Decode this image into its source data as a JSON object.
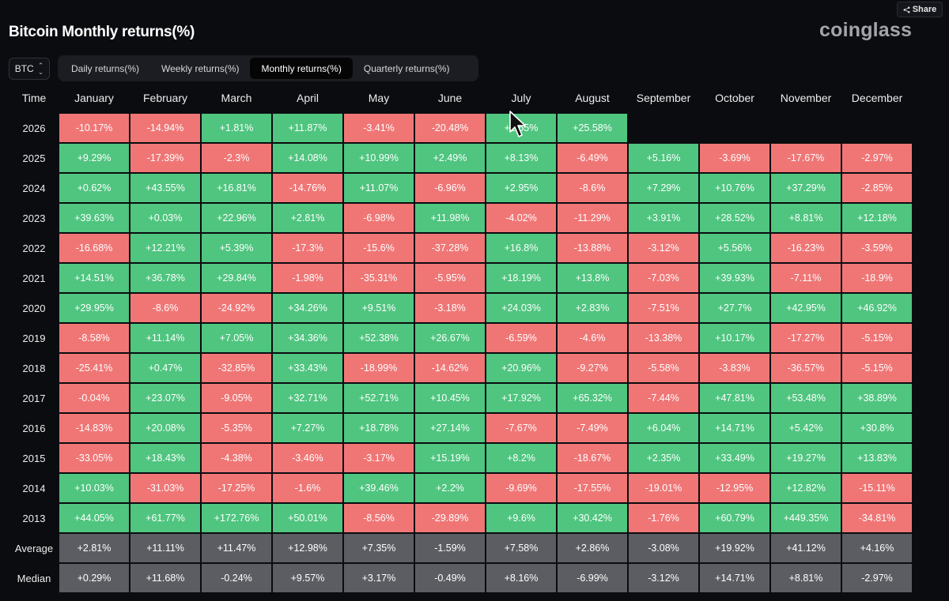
{
  "header": {
    "title": "Bitcoin Monthly returns(%)",
    "logo": "coinglass",
    "share_label": "Share"
  },
  "controls": {
    "asset": "BTC",
    "tabs": [
      {
        "label": "Daily returns(%)",
        "active": false
      },
      {
        "label": "Weekly returns(%)",
        "active": false
      },
      {
        "label": "Monthly returns(%)",
        "active": true
      },
      {
        "label": "Quarterly returns(%)",
        "active": false
      }
    ]
  },
  "colors": {
    "positive": "#4fc57f",
    "negative": "#f07676",
    "stat": "#5c5d62",
    "background": "#0b0c10"
  },
  "table": {
    "time_header": "Time",
    "months": [
      "January",
      "February",
      "March",
      "April",
      "May",
      "June",
      "July",
      "August",
      "September",
      "October",
      "November",
      "December"
    ],
    "rows": [
      {
        "label": "2026",
        "values": [
          "-10.17%",
          "-14.94%",
          "+1.81%",
          "+11.87%",
          "-3.41%",
          "-20.48%",
          "+1.55%",
          "+25.58%",
          "",
          "",
          "",
          ""
        ]
      },
      {
        "label": "2025",
        "values": [
          "+9.29%",
          "-17.39%",
          "-2.3%",
          "+14.08%",
          "+10.99%",
          "+2.49%",
          "+8.13%",
          "-6.49%",
          "+5.16%",
          "-3.69%",
          "-17.67%",
          "-2.97%"
        ]
      },
      {
        "label": "2024",
        "values": [
          "+0.62%",
          "+43.55%",
          "+16.81%",
          "-14.76%",
          "+11.07%",
          "-6.96%",
          "+2.95%",
          "-8.6%",
          "+7.29%",
          "+10.76%",
          "+37.29%",
          "-2.85%"
        ]
      },
      {
        "label": "2023",
        "values": [
          "+39.63%",
          "+0.03%",
          "+22.96%",
          "+2.81%",
          "-6.98%",
          "+11.98%",
          "-4.02%",
          "-11.29%",
          "+3.91%",
          "+28.52%",
          "+8.81%",
          "+12.18%"
        ]
      },
      {
        "label": "2022",
        "values": [
          "-16.68%",
          "+12.21%",
          "+5.39%",
          "-17.3%",
          "-15.6%",
          "-37.28%",
          "+16.8%",
          "-13.88%",
          "-3.12%",
          "+5.56%",
          "-16.23%",
          "-3.59%"
        ]
      },
      {
        "label": "2021",
        "values": [
          "+14.51%",
          "+36.78%",
          "+29.84%",
          "-1.98%",
          "-35.31%",
          "-5.95%",
          "+18.19%",
          "+13.8%",
          "-7.03%",
          "+39.93%",
          "-7.11%",
          "-18.9%"
        ]
      },
      {
        "label": "2020",
        "values": [
          "+29.95%",
          "-8.6%",
          "-24.92%",
          "+34.26%",
          "+9.51%",
          "-3.18%",
          "+24.03%",
          "+2.83%",
          "-7.51%",
          "+27.7%",
          "+42.95%",
          "+46.92%"
        ]
      },
      {
        "label": "2019",
        "values": [
          "-8.58%",
          "+11.14%",
          "+7.05%",
          "+34.36%",
          "+52.38%",
          "+26.67%",
          "-6.59%",
          "-4.6%",
          "-13.38%",
          "+10.17%",
          "-17.27%",
          "-5.15%"
        ]
      },
      {
        "label": "2018",
        "values": [
          "-25.41%",
          "+0.47%",
          "-32.85%",
          "+33.43%",
          "-18.99%",
          "-14.62%",
          "+20.96%",
          "-9.27%",
          "-5.58%",
          "-3.83%",
          "-36.57%",
          "-5.15%"
        ]
      },
      {
        "label": "2017",
        "values": [
          "-0.04%",
          "+23.07%",
          "-9.05%",
          "+32.71%",
          "+52.71%",
          "+10.45%",
          "+17.92%",
          "+65.32%",
          "-7.44%",
          "+47.81%",
          "+53.48%",
          "+38.89%"
        ]
      },
      {
        "label": "2016",
        "values": [
          "-14.83%",
          "+20.08%",
          "-5.35%",
          "+7.27%",
          "+18.78%",
          "+27.14%",
          "-7.67%",
          "-7.49%",
          "+6.04%",
          "+14.71%",
          "+5.42%",
          "+30.8%"
        ]
      },
      {
        "label": "2015",
        "values": [
          "-33.05%",
          "+18.43%",
          "-4.38%",
          "-3.46%",
          "-3.17%",
          "+15.19%",
          "+8.2%",
          "-18.67%",
          "+2.35%",
          "+33.49%",
          "+19.27%",
          "+13.83%"
        ]
      },
      {
        "label": "2014",
        "values": [
          "+10.03%",
          "-31.03%",
          "-17.25%",
          "-1.6%",
          "+39.46%",
          "+2.2%",
          "-9.69%",
          "-17.55%",
          "-19.01%",
          "-12.95%",
          "+12.82%",
          "-15.11%"
        ]
      },
      {
        "label": "2013",
        "values": [
          "+44.05%",
          "+61.77%",
          "+172.76%",
          "+50.01%",
          "-8.56%",
          "-29.89%",
          "+9.6%",
          "+30.42%",
          "-1.76%",
          "+60.79%",
          "+449.35%",
          "-34.81%"
        ]
      }
    ],
    "stats": [
      {
        "label": "Average",
        "values": [
          "+2.81%",
          "+11.11%",
          "+11.47%",
          "+12.98%",
          "+7.35%",
          "-1.59%",
          "+7.58%",
          "+2.86%",
          "-3.08%",
          "+19.92%",
          "+41.12%",
          "+4.16%"
        ]
      },
      {
        "label": "Median",
        "values": [
          "+0.29%",
          "+11.68%",
          "-0.24%",
          "+9.57%",
          "+3.17%",
          "-0.49%",
          "+8.16%",
          "-6.99%",
          "-3.12%",
          "+14.71%",
          "+8.81%",
          "-2.97%"
        ]
      }
    ]
  }
}
